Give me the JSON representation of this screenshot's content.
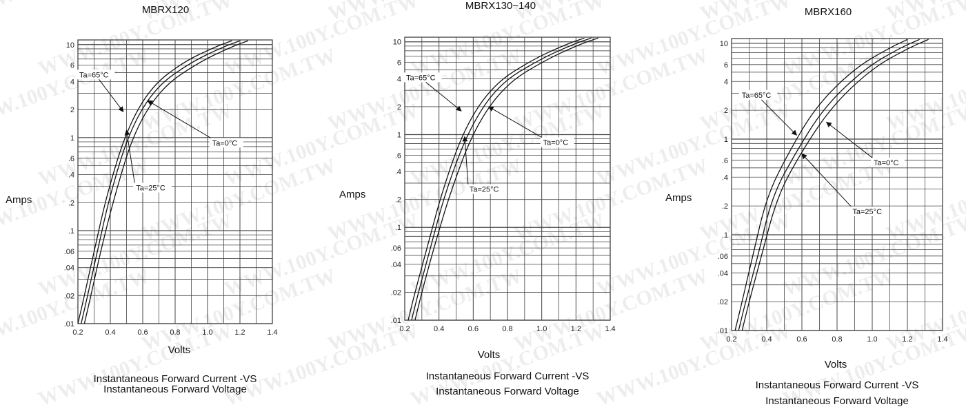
{
  "watermark": "WWW.100Y.COM.TW",
  "chart_data": [
    {
      "type": "line",
      "title": "MBRX120",
      "xlabel": "Volts",
      "ylabel": "Amps",
      "caption_line1": "Instantaneous Forward Current -VS",
      "caption_line2": "Instantaneous Forward Voltage",
      "xlim": [
        0.2,
        1.4
      ],
      "ylim": [
        0.01,
        10
      ],
      "yscale": "log",
      "grid": true,
      "xticks": [
        "0.2",
        "0.4",
        "0.6",
        "0.8",
        "1.0",
        "1.2",
        "1.4"
      ],
      "yticks": [
        {
          "v": 10,
          "t": "10"
        },
        {
          "v": 6,
          "t": "6"
        },
        {
          "v": 4,
          "t": "4"
        },
        {
          "v": 2,
          "t": "2"
        },
        {
          "v": 1,
          "t": "1"
        },
        {
          "v": 0.6,
          "t": ".6"
        },
        {
          "v": 0.4,
          "t": ".4"
        },
        {
          "v": 0.2,
          "t": ".2"
        },
        {
          "v": 0.1,
          "t": ".1"
        },
        {
          "v": 0.06,
          "t": ".06"
        },
        {
          "v": 0.04,
          "t": ".04"
        },
        {
          "v": 0.02,
          "t": ".02"
        },
        {
          "v": 0.01,
          "t": ".01"
        }
      ],
      "series": [
        {
          "name": "Ta=65°C",
          "x": [
            0.2,
            0.24,
            0.3,
            0.38,
            0.5,
            0.65,
            0.85,
            1.05,
            1.15
          ],
          "y": [
            0.01,
            0.02,
            0.06,
            0.25,
            1.2,
            3.5,
            6.5,
            9.5,
            11
          ]
        },
        {
          "name": "Ta=25°C",
          "x": [
            0.22,
            0.26,
            0.32,
            0.4,
            0.52,
            0.68,
            0.9,
            1.1,
            1.2
          ],
          "y": [
            0.01,
            0.02,
            0.06,
            0.25,
            1.2,
            3.5,
            6.5,
            9.5,
            11
          ]
        },
        {
          "name": "Ta=0°C",
          "x": [
            0.24,
            0.28,
            0.34,
            0.43,
            0.55,
            0.72,
            0.95,
            1.15,
            1.25
          ],
          "y": [
            0.01,
            0.02,
            0.06,
            0.25,
            1.2,
            3.5,
            6.5,
            9.5,
            11
          ]
        }
      ],
      "annotations": [
        {
          "text": "Ta=65°C",
          "lx": 0.2,
          "ly": 4.6,
          "ax": 0.48,
          "ay": 1.9
        },
        {
          "text": "Ta=0°C",
          "lx": 1.02,
          "ly": 0.85,
          "ax": 0.63,
          "ay": 2.5
        },
        {
          "text": "Ta=25°C",
          "lx": 0.55,
          "ly": 0.28,
          "ax": 0.5,
          "ay": 1.2
        }
      ]
    },
    {
      "type": "line",
      "title": "MBRX130~140",
      "xlabel": "Volts",
      "ylabel": "Amps",
      "caption_line1": "Instantaneous Forward Current -VS",
      "caption_line2": "Instantaneous Forward Voltage",
      "xlim": [
        0.2,
        1.4
      ],
      "ylim": [
        0.01,
        10
      ],
      "yscale": "log",
      "grid": true,
      "xticks": [
        "0.2",
        "0.4",
        "0.6",
        "0.8",
        "1.0",
        "1.2",
        "1.4"
      ],
      "yticks": [
        {
          "v": 10,
          "t": "10"
        },
        {
          "v": 6,
          "t": "6"
        },
        {
          "v": 4,
          "t": "4"
        },
        {
          "v": 2,
          "t": "2"
        },
        {
          "v": 1,
          "t": "1"
        },
        {
          "v": 0.6,
          "t": ".6"
        },
        {
          "v": 0.4,
          "t": ".4"
        },
        {
          "v": 0.2,
          "t": ".2"
        },
        {
          "v": 0.1,
          "t": ".1"
        },
        {
          "v": 0.06,
          "t": ".06"
        },
        {
          "v": 0.04,
          "t": ".04"
        },
        {
          "v": 0.02,
          "t": ".02"
        },
        {
          "v": 0.01,
          "t": ".01"
        }
      ],
      "series": [
        {
          "name": "Ta=65°C",
          "x": [
            0.22,
            0.26,
            0.33,
            0.42,
            0.55,
            0.72,
            0.95,
            1.15,
            1.25
          ],
          "y": [
            0.01,
            0.02,
            0.06,
            0.25,
            1.2,
            3.5,
            6.5,
            9.5,
            11
          ]
        },
        {
          "name": "Ta=25°C",
          "x": [
            0.24,
            0.28,
            0.35,
            0.44,
            0.58,
            0.75,
            0.99,
            1.19,
            1.29
          ],
          "y": [
            0.01,
            0.02,
            0.06,
            0.25,
            1.2,
            3.5,
            6.5,
            9.5,
            11
          ]
        },
        {
          "name": "Ta=0°C",
          "x": [
            0.26,
            0.3,
            0.37,
            0.47,
            0.61,
            0.79,
            1.03,
            1.23,
            1.33
          ],
          "y": [
            0.01,
            0.02,
            0.06,
            0.25,
            1.2,
            3.5,
            6.5,
            9.5,
            11
          ]
        }
      ],
      "annotations": [
        {
          "text": "Ta=65°C",
          "lx": 0.2,
          "ly": 4.0,
          "ax": 0.53,
          "ay": 1.8
        },
        {
          "text": "Ta=0°C",
          "lx": 1.0,
          "ly": 0.8,
          "ax": 0.69,
          "ay": 2.0
        },
        {
          "text": "Ta=25°C",
          "lx": 0.57,
          "ly": 0.25,
          "ax": 0.55,
          "ay": 0.95
        }
      ]
    },
    {
      "type": "line",
      "title": "MBRX160",
      "xlabel": "Volts",
      "ylabel": "Amps",
      "caption_line1": "Instantaneous Forward Current -VS",
      "caption_line2": "Instantaneous Forward Voltage",
      "xlim": [
        0.2,
        1.4
      ],
      "ylim": [
        0.01,
        10
      ],
      "yscale": "log",
      "grid": true,
      "xticks": [
        "0.2",
        "0.4",
        "0.6",
        "0.8",
        "1.0",
        "1.2",
        "1.4"
      ],
      "yticks": [
        {
          "v": 10,
          "t": "10"
        },
        {
          "v": 6,
          "t": "6"
        },
        {
          "v": 4,
          "t": "4"
        },
        {
          "v": 2,
          "t": "2"
        },
        {
          "v": 1,
          "t": "1"
        },
        {
          "v": 0.6,
          "t": ".6"
        },
        {
          "v": 0.4,
          "t": ".4"
        },
        {
          "v": 0.2,
          "t": ".2"
        },
        {
          "v": 0.1,
          "t": ".1"
        },
        {
          "v": 0.06,
          "t": ".06"
        },
        {
          "v": 0.04,
          "t": ".04"
        },
        {
          "v": 0.02,
          "t": ".02"
        },
        {
          "v": 0.01,
          "t": ".01"
        }
      ],
      "series": [
        {
          "name": "Ta=65°C",
          "x": [
            0.22,
            0.26,
            0.32,
            0.4,
            0.52,
            0.68,
            0.9,
            1.1,
            1.2
          ],
          "y": [
            0.01,
            0.02,
            0.06,
            0.25,
            0.7,
            2.2,
            5.5,
            9.0,
            11
          ]
        },
        {
          "name": "Ta=25°C",
          "x": [
            0.24,
            0.28,
            0.35,
            0.43,
            0.56,
            0.73,
            0.96,
            1.16,
            1.27
          ],
          "y": [
            0.01,
            0.02,
            0.06,
            0.25,
            0.7,
            2.2,
            5.5,
            9.0,
            11
          ]
        },
        {
          "name": "Ta=0°C",
          "x": [
            0.26,
            0.3,
            0.37,
            0.46,
            0.59,
            0.77,
            1.0,
            1.21,
            1.32
          ],
          "y": [
            0.01,
            0.02,
            0.06,
            0.25,
            0.7,
            2.2,
            5.5,
            9.0,
            11
          ]
        }
      ],
      "annotations": [
        {
          "text": "Ta=65°C",
          "lx": 0.25,
          "ly": 2.8,
          "ax": 0.57,
          "ay": 1.1
        },
        {
          "text": "Ta=0°C",
          "lx": 1.0,
          "ly": 0.55,
          "ax": 0.74,
          "ay": 1.5
        },
        {
          "text": "Ta=25°C",
          "lx": 0.88,
          "ly": 0.17,
          "ax": 0.6,
          "ay": 0.7
        }
      ]
    }
  ]
}
